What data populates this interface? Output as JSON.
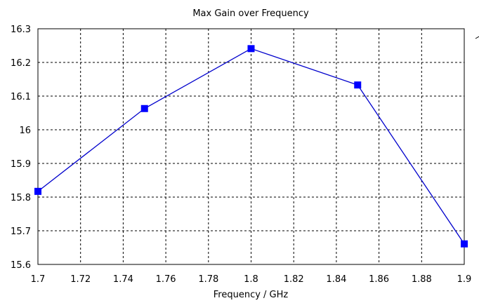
{
  "chart_data": {
    "type": "line",
    "title": "Max Gain over Frequency",
    "xlabel": "Frequency / GHz",
    "ylabel": "",
    "xlim": [
      1.7,
      1.9
    ],
    "ylim": [
      15.6,
      16.3
    ],
    "x_ticks": [
      "1.7",
      "1.72",
      "1.74",
      "1.76",
      "1.78",
      "1.8",
      "1.82",
      "1.84",
      "1.86",
      "1.88",
      "1.9"
    ],
    "y_ticks": [
      "15.6",
      "15.7",
      "15.8",
      "15.9",
      "16",
      "16.1",
      "16.2",
      "16.3"
    ],
    "grid": true,
    "legend": "none",
    "series": [
      {
        "color": "#0000cc",
        "marker_color": "#0000ff",
        "marker": "square",
        "x": [
          1.7,
          1.75,
          1.8,
          1.85,
          1.9
        ],
        "y": [
          15.817,
          16.063,
          16.241,
          16.133,
          15.661
        ]
      }
    ]
  }
}
